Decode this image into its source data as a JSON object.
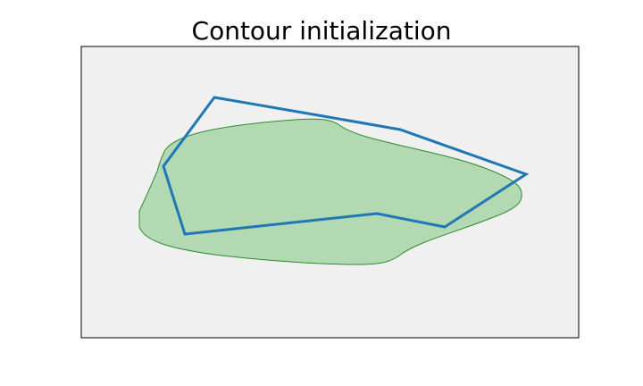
{
  "title": "Contour initialization",
  "colors": {
    "panel_background": "#f0f0f0",
    "panel_border": "#000000",
    "region_fill": "#b3d9b3",
    "region_edge": "#2e8b2e",
    "contour_line": "#1f77b4"
  }
}
